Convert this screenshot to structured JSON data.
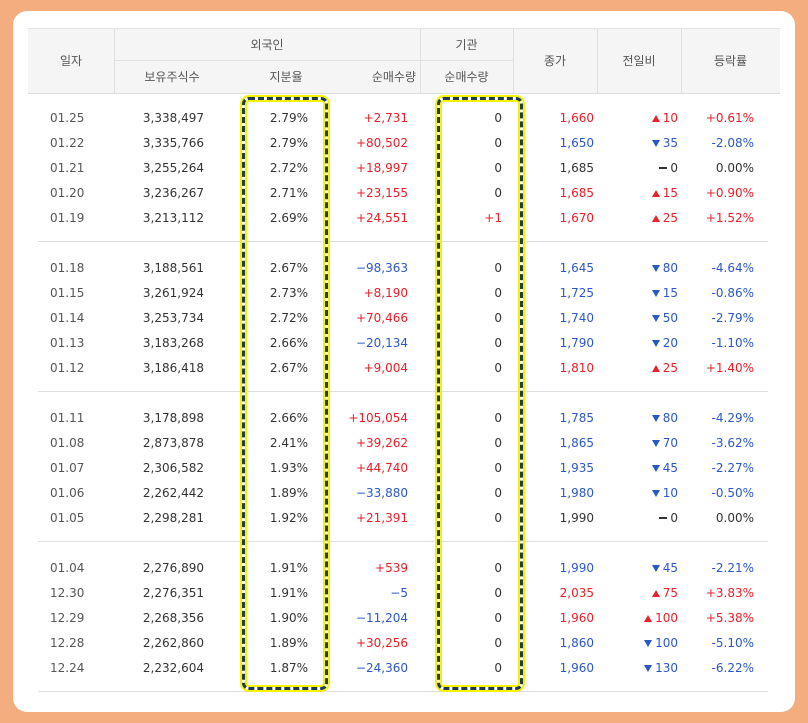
{
  "header": {
    "date": "일자",
    "foreign": "외국인",
    "institution": "기관",
    "holdings": "보유주식수",
    "ratio": "지분율",
    "foreign_net": "순매수량",
    "inst_net": "순매수량",
    "close": "종가",
    "change": "전일비",
    "rate": "등락률"
  },
  "colors": {
    "up": "#e8202a",
    "down": "#2b58c9",
    "highlight": "#f7f200"
  },
  "rows": [
    {
      "date": "01.25",
      "holdings": "3,338,497",
      "ratio": "2.79%",
      "fnet": "+2,731",
      "fdir": "up",
      "inst": "0",
      "close": "1,660",
      "cdir": "up",
      "chg": "10",
      "rate": "+0.61%"
    },
    {
      "date": "01.22",
      "holdings": "3,335,766",
      "ratio": "2.79%",
      "fnet": "+80,502",
      "fdir": "up",
      "inst": "0",
      "close": "1,650",
      "cdir": "down",
      "chg": "35",
      "rate": "-2.08%"
    },
    {
      "date": "01.21",
      "holdings": "3,255,264",
      "ratio": "2.72%",
      "fnet": "+18,997",
      "fdir": "up",
      "inst": "0",
      "close": "1,685",
      "cdir": "flat",
      "chg": "0",
      "rate": "0.00%"
    },
    {
      "date": "01.20",
      "holdings": "3,236,267",
      "ratio": "2.71%",
      "fnet": "+23,155",
      "fdir": "up",
      "inst": "0",
      "close": "1,685",
      "cdir": "up",
      "chg": "15",
      "rate": "+0.90%"
    },
    {
      "date": "01.19",
      "holdings": "3,213,112",
      "ratio": "2.69%",
      "fnet": "+24,551",
      "fdir": "up",
      "inst": "+1",
      "close": "1,670",
      "cdir": "up",
      "chg": "25",
      "rate": "+1.52%"
    },
    {
      "date": "01.18",
      "holdings": "3,188,561",
      "ratio": "2.67%",
      "fnet": "−98,363",
      "fdir": "down",
      "inst": "0",
      "close": "1,645",
      "cdir": "down",
      "chg": "80",
      "rate": "-4.64%"
    },
    {
      "date": "01.15",
      "holdings": "3,261,924",
      "ratio": "2.73%",
      "fnet": "+8,190",
      "fdir": "up",
      "inst": "0",
      "close": "1,725",
      "cdir": "down",
      "chg": "15",
      "rate": "-0.86%"
    },
    {
      "date": "01.14",
      "holdings": "3,253,734",
      "ratio": "2.72%",
      "fnet": "+70,466",
      "fdir": "up",
      "inst": "0",
      "close": "1,740",
      "cdir": "down",
      "chg": "50",
      "rate": "-2.79%"
    },
    {
      "date": "01.13",
      "holdings": "3,183,268",
      "ratio": "2.66%",
      "fnet": "−20,134",
      "fdir": "down",
      "inst": "0",
      "close": "1,790",
      "cdir": "down",
      "chg": "20",
      "rate": "-1.10%"
    },
    {
      "date": "01.12",
      "holdings": "3,186,418",
      "ratio": "2.67%",
      "fnet": "+9,004",
      "fdir": "up",
      "inst": "0",
      "close": "1,810",
      "cdir": "up",
      "chg": "25",
      "rate": "+1.40%"
    },
    {
      "date": "01.11",
      "holdings": "3,178,898",
      "ratio": "2.66%",
      "fnet": "+105,054",
      "fdir": "up",
      "inst": "0",
      "close": "1,785",
      "cdir": "down",
      "chg": "80",
      "rate": "-4.29%"
    },
    {
      "date": "01.08",
      "holdings": "2,873,878",
      "ratio": "2.41%",
      "fnet": "+39,262",
      "fdir": "up",
      "inst": "0",
      "close": "1,865",
      "cdir": "down",
      "chg": "70",
      "rate": "-3.62%"
    },
    {
      "date": "01.07",
      "holdings": "2,306,582",
      "ratio": "1.93%",
      "fnet": "+44,740",
      "fdir": "up",
      "inst": "0",
      "close": "1,935",
      "cdir": "down",
      "chg": "45",
      "rate": "-2.27%"
    },
    {
      "date": "01.06",
      "holdings": "2,262,442",
      "ratio": "1.89%",
      "fnet": "−33,880",
      "fdir": "down",
      "inst": "0",
      "close": "1,980",
      "cdir": "down",
      "chg": "10",
      "rate": "-0.50%"
    },
    {
      "date": "01.05",
      "holdings": "2,298,281",
      "ratio": "1.92%",
      "fnet": "+21,391",
      "fdir": "up",
      "inst": "0",
      "close": "1,990",
      "cdir": "flat",
      "chg": "0",
      "rate": "0.00%"
    },
    {
      "date": "01.04",
      "holdings": "2,276,890",
      "ratio": "1.91%",
      "fnet": "+539",
      "fdir": "up",
      "inst": "0",
      "close": "1,990",
      "cdir": "down",
      "chg": "45",
      "rate": "-2.21%"
    },
    {
      "date": "12.30",
      "holdings": "2,276,351",
      "ratio": "1.91%",
      "fnet": "−5",
      "fdir": "down",
      "inst": "0",
      "close": "2,035",
      "cdir": "up",
      "chg": "75",
      "rate": "+3.83%"
    },
    {
      "date": "12.29",
      "holdings": "2,268,356",
      "ratio": "1.90%",
      "fnet": "−11,204",
      "fdir": "down",
      "inst": "0",
      "close": "1,960",
      "cdir": "up",
      "chg": "100",
      "rate": "+5.38%"
    },
    {
      "date": "12.28",
      "holdings": "2,262,860",
      "ratio": "1.89%",
      "fnet": "+30,256",
      "fdir": "up",
      "inst": "0",
      "close": "1,860",
      "cdir": "down",
      "chg": "100",
      "rate": "-5.10%"
    },
    {
      "date": "12.24",
      "holdings": "2,232,604",
      "ratio": "1.87%",
      "fnet": "−24,360",
      "fdir": "down",
      "inst": "0",
      "close": "1,960",
      "cdir": "down",
      "chg": "130",
      "rate": "-6.22%"
    }
  ]
}
